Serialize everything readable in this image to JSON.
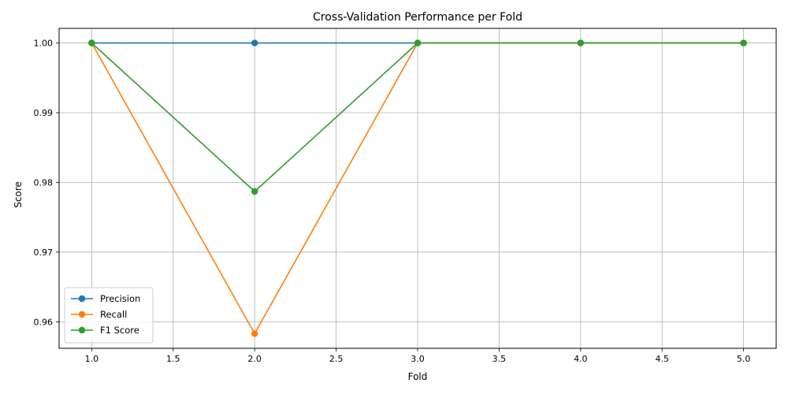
{
  "chart_data": {
    "type": "line",
    "title": "Cross-Validation Performance per Fold",
    "xlabel": "Fold",
    "ylabel": "Score",
    "x": [
      1,
      2,
      3,
      4,
      5
    ],
    "xlim": [
      0.8,
      5.2
    ],
    "ylim": [
      0.9562,
      1.0021
    ],
    "xticks": [
      1.0,
      1.5,
      2.0,
      2.5,
      3.0,
      3.5,
      4.0,
      4.5,
      5.0
    ],
    "xtick_labels": [
      "1.0",
      "1.5",
      "2.0",
      "2.5",
      "3.0",
      "3.5",
      "4.0",
      "4.5",
      "5.0"
    ],
    "yticks": [
      0.96,
      0.97,
      0.98,
      0.99,
      1.0
    ],
    "ytick_labels": [
      "0.96",
      "0.97",
      "0.98",
      "0.99",
      "1.00"
    ],
    "grid": true,
    "legend_position": "lower-left",
    "series": [
      {
        "name": "Precision",
        "color": "#1f77b4",
        "values": [
          1.0,
          1.0,
          1.0,
          1.0,
          1.0
        ]
      },
      {
        "name": "Recall",
        "color": "#ff7f0e",
        "values": [
          1.0,
          0.9583,
          1.0,
          1.0,
          1.0
        ]
      },
      {
        "name": "F1 Score",
        "color": "#2ca02c",
        "values": [
          1.0,
          0.9787,
          1.0,
          1.0,
          1.0
        ]
      }
    ]
  }
}
